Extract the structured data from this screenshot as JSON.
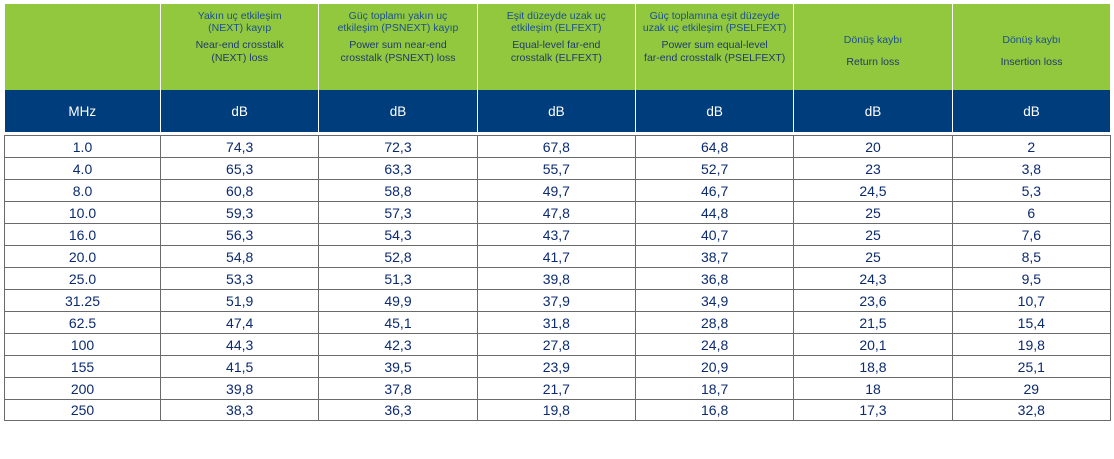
{
  "header": {
    "columns": [
      {
        "tr": "",
        "en": ""
      },
      {
        "tr": "Yakın uç etkileşim\n(NEXT) kayıp",
        "en": "Near-end crosstalk\n(NEXT) loss"
      },
      {
        "tr": "Güç toplamı yakın uç\netkileşim (PSNEXT) kayıp",
        "en": "Power sum near-end\ncrosstalk (PSNEXT) loss"
      },
      {
        "tr": "Eşit düzeyde uzak uç\netkileşim (ELFEXT)",
        "en": "Equal-level far-end\ncrosstalk (ELFEXT)"
      },
      {
        "tr": "Güç toplamına eşit düzeyde\nuzak uç etkileşim (PSELFEXT)",
        "en": "Power sum equal-level\nfar-end crosstalk (PSELFEXT)"
      },
      {
        "tr": "Dönüş kaybı",
        "en": "Return loss"
      },
      {
        "tr": "Dönüş kaybı",
        "en": "Insertion loss"
      }
    ],
    "units": [
      "MHz",
      "dB",
      "dB",
      "dB",
      "dB",
      "dB",
      "dB"
    ]
  },
  "rows": [
    [
      "1.0",
      "74,3",
      "72,3",
      "67,8",
      "64,8",
      "20",
      "2"
    ],
    [
      "4.0",
      "65,3",
      "63,3",
      "55,7",
      "52,7",
      "23",
      "3,8"
    ],
    [
      "8.0",
      "60,8",
      "58,8",
      "49,7",
      "46,7",
      "24,5",
      "5,3"
    ],
    [
      "10.0",
      "59,3",
      "57,3",
      "47,8",
      "44,8",
      "25",
      "6"
    ],
    [
      "16.0",
      "56,3",
      "54,3",
      "43,7",
      "40,7",
      "25",
      "7,6"
    ],
    [
      "20.0",
      "54,8",
      "52,8",
      "41,7",
      "38,7",
      "25",
      "8,5"
    ],
    [
      "25.0",
      "53,3",
      "51,3",
      "39,8",
      "36,8",
      "24,3",
      "9,5"
    ],
    [
      "31.25",
      "51,9",
      "49,9",
      "37,9",
      "34,9",
      "23,6",
      "10,7"
    ],
    [
      "62.5",
      "47,4",
      "45,1",
      "31,8",
      "28,8",
      "21,5",
      "15,4"
    ],
    [
      "100",
      "44,3",
      "42,3",
      "27,8",
      "24,8",
      "20,1",
      "19,8"
    ],
    [
      "155",
      "41,5",
      "39,5",
      "23,9",
      "20,9",
      "18,8",
      "25,1"
    ],
    [
      "200",
      "39,8",
      "37,8",
      "21,7",
      "18,7",
      "18",
      "29"
    ],
    [
      "250",
      "38,3",
      "36,3",
      "19,8",
      "16,8",
      "17,3",
      "32,8"
    ]
  ],
  "colors": {
    "header_green": "#92c83e",
    "header_blue": "#003d7d",
    "text_blue": "#0b2a6f"
  }
}
